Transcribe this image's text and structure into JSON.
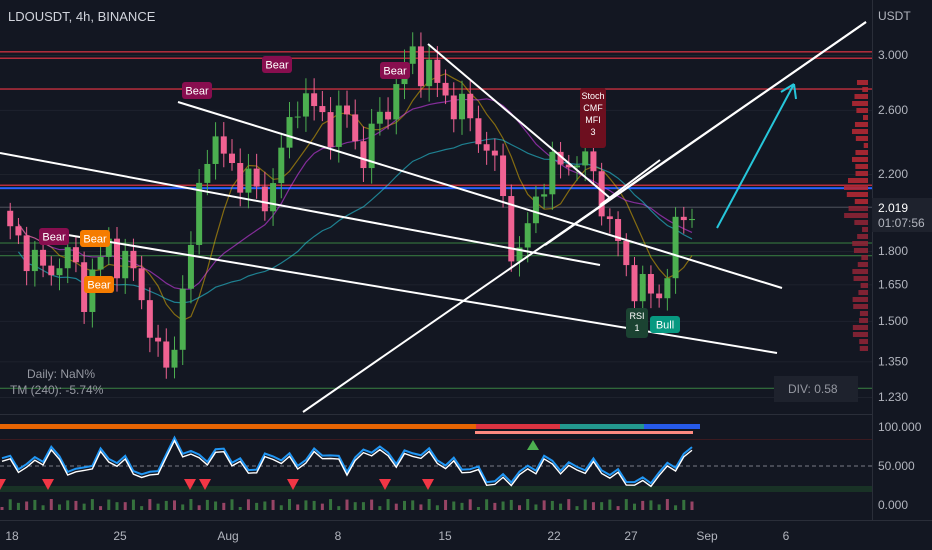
{
  "header": {
    "symbol_title": "LDOUSDT, 4h, BINANCE",
    "currency": "USDT"
  },
  "colors": {
    "background": "#131722",
    "bull_candle": "#4caf50",
    "bear_candle": "#f06292",
    "trendline": "#ffffff",
    "arrow": "#26c6da",
    "blue_level": "#2962ff",
    "red_level": "#f23645",
    "green_level": "#4caf50",
    "rsi_line": "#2196f3"
  },
  "chart_data": {
    "type": "candlestick",
    "price_axis": {
      "ticks": [
        "3.000",
        "2.600",
        "2.200",
        "1.800",
        "1.650",
        "1.500",
        "1.350",
        "1.230"
      ],
      "tick_values": [
        3.0,
        2.6,
        2.2,
        1.8,
        1.65,
        1.5,
        1.35,
        1.23
      ],
      "scale": "log"
    },
    "time_axis": {
      "ticks": [
        "18",
        "25",
        "Aug",
        "8",
        "15",
        "22",
        "27",
        "Sep",
        "6"
      ]
    },
    "current_price": {
      "value": "2.019",
      "countdown": "01:07:56"
    },
    "price_path": [
      [
        0,
        1.95
      ],
      [
        5,
        1.7
      ],
      [
        8,
        1.78
      ],
      [
        10,
        1.62
      ],
      [
        13,
        1.82
      ],
      [
        16,
        1.7
      ],
      [
        19,
        1.38
      ],
      [
        20,
        1.3
      ],
      [
        21,
        1.45
      ],
      [
        23,
        1.8
      ],
      [
        25,
        2.4
      ],
      [
        27,
        2.3
      ],
      [
        29,
        2.2
      ],
      [
        32,
        2.05
      ],
      [
        34,
        2.3
      ],
      [
        36,
        2.7
      ],
      [
        38,
        2.6
      ],
      [
        40,
        2.5
      ],
      [
        42,
        2.55
      ],
      [
        44,
        2.3
      ],
      [
        46,
        2.55
      ],
      [
        48,
        2.75
      ],
      [
        50,
        3.02
      ],
      [
        52,
        2.85
      ],
      [
        54,
        2.7
      ],
      [
        56,
        2.6
      ],
      [
        58,
        2.45
      ],
      [
        60,
        2.25
      ],
      [
        62,
        1.85
      ],
      [
        63,
        1.76
      ],
      [
        64,
        1.92
      ],
      [
        66,
        2.2
      ],
      [
        68,
        2.25
      ],
      [
        70,
        2.3
      ],
      [
        72,
        2.2
      ],
      [
        74,
        1.92
      ],
      [
        76,
        1.72
      ],
      [
        78,
        1.62
      ],
      [
        80,
        1.6
      ],
      [
        82,
        1.88
      ],
      [
        84,
        2.02
      ]
    ],
    "annotations": [
      {
        "label": "Bear",
        "kind": "bear"
      },
      {
        "label": "Bear",
        "kind": "bear"
      },
      {
        "label": "Bear",
        "kind": "bear"
      },
      {
        "label": "Bear",
        "kind": "bear"
      },
      {
        "label": "Bear",
        "kind": "bear-orange"
      },
      {
        "label": "Bear",
        "kind": "bear-orange"
      },
      {
        "label": "Stoch CMF MFI 3",
        "kind": "bear-dark"
      },
      {
        "label": "RSI 1",
        "kind": "bull-dark"
      },
      {
        "label": "Bull",
        "kind": "bull"
      }
    ],
    "overlay_labels": {
      "daily": "Daily: NaN%",
      "tm": "TM (240): -5.74%",
      "div": "DIV: 0.58"
    },
    "oscillator": {
      "ticks": [
        "100.000",
        "50.000",
        "0.000"
      ],
      "tick_values": [
        100,
        50,
        0
      ],
      "path": [
        [
          0,
          60
        ],
        [
          3,
          50
        ],
        [
          6,
          70
        ],
        [
          9,
          40
        ],
        [
          12,
          65
        ],
        [
          15,
          55
        ],
        [
          18,
          35
        ],
        [
          21,
          80
        ],
        [
          24,
          60
        ],
        [
          27,
          70
        ],
        [
          30,
          45
        ],
        [
          33,
          65
        ],
        [
          36,
          55
        ],
        [
          39,
          70
        ],
        [
          42,
          50
        ],
        [
          45,
          75
        ],
        [
          48,
          60
        ],
        [
          51,
          70
        ],
        [
          54,
          55
        ],
        [
          57,
          48
        ],
        [
          60,
          30
        ],
        [
          63,
          40
        ],
        [
          66,
          58
        ],
        [
          69,
          48
        ],
        [
          72,
          52
        ],
        [
          75,
          38
        ],
        [
          78,
          28
        ],
        [
          81,
          48
        ],
        [
          84,
          70
        ]
      ]
    }
  }
}
